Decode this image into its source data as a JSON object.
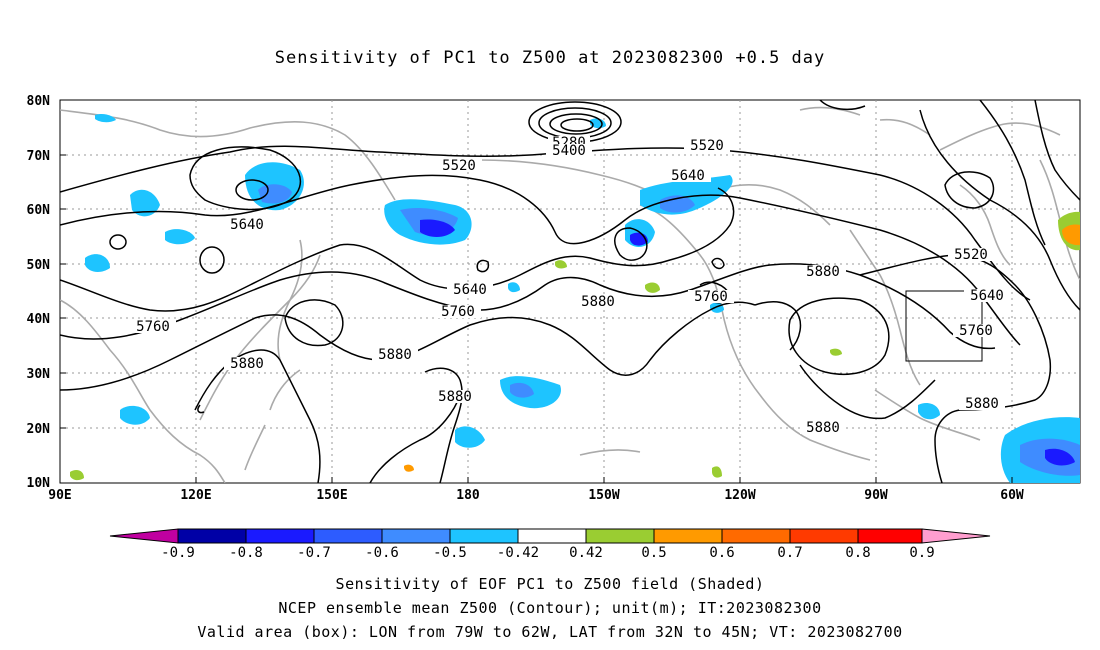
{
  "title": "Sensitivity of PC1 to Z500 at 2023082300 +0.5 day",
  "lat_ticks": [
    "80N",
    "70N",
    "60N",
    "50N",
    "40N",
    "30N",
    "20N",
    "10N"
  ],
  "lon_ticks": [
    "90E",
    "120E",
    "150E",
    "180",
    "150W",
    "120W",
    "90W",
    "60W"
  ],
  "contour_labels": [
    "5280",
    "5400",
    "5520",
    "5520",
    "5640",
    "5640",
    "5640",
    "5760",
    "5760",
    "5760",
    "5880",
    "5880",
    "5880",
    "5880",
    "5880",
    "5520",
    "5640",
    "5760",
    "5880"
  ],
  "colorbar": {
    "labels": [
      "-0.9",
      "-0.8",
      "-0.7",
      "-0.6",
      "-0.5",
      "-0.42",
      "0.42",
      "0.5",
      "0.6",
      "0.7",
      "0.8",
      "0.9"
    ],
    "colors": [
      "#0000a6",
      "#1a1aff",
      "#2d5cff",
      "#3f8cff",
      "#1ec4ff",
      "#ffffff",
      "#9acd32",
      "#ff9a00",
      "#ff6a00",
      "#ff3a00",
      "#ff0000"
    ],
    "low_end_color": "#c000a0",
    "high_end_color": "#ff9ecf"
  },
  "captions": [
    "Sensitivity of EOF PC1 to Z500 field (Shaded)",
    "NCEP ensemble mean Z500 (Contour); unit(m); IT:2023082300",
    "Valid area (box): LON from 79W to 62W, LAT from 32N to 45N; VT: 2023082700"
  ]
}
